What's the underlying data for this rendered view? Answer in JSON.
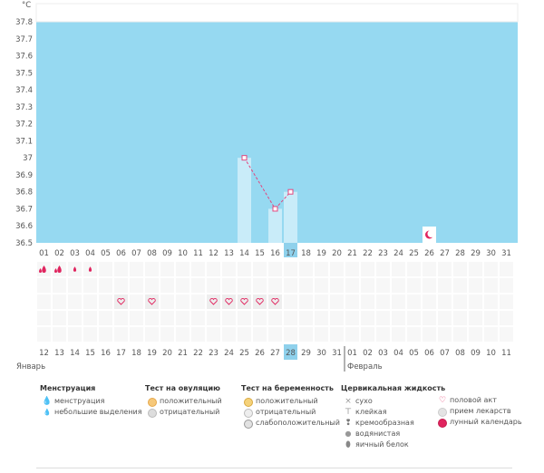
{
  "chart_data": {
    "type": "bar",
    "unit_label": "°C",
    "ylim": [
      36.5,
      37.8
    ],
    "yticks": [
      "36.5",
      "36.6",
      "36.7",
      "36.8",
      "36.9",
      "37",
      "37.1",
      "37.2",
      "37.3",
      "37.4",
      "37.5",
      "37.6",
      "37.7",
      "37.8"
    ],
    "cycle_days": [
      "01",
      "02",
      "03",
      "04",
      "05",
      "06",
      "07",
      "08",
      "09",
      "10",
      "11",
      "12",
      "13",
      "14",
      "15",
      "16",
      "17",
      "18",
      "19",
      "20",
      "21",
      "22",
      "23",
      "24",
      "25",
      "26",
      "27",
      "28",
      "29",
      "30",
      "31"
    ],
    "highlight_day": "17",
    "temperatures": [
      {
        "day": "14",
        "value": 37.0
      },
      {
        "day": "16",
        "value": 36.7
      },
      {
        "day": "17",
        "value": 36.8
      }
    ],
    "lunar_day": "26",
    "menstruation_days": [
      1,
      2,
      3,
      4
    ],
    "menstruation_heavy_days": [
      1,
      2
    ],
    "intercourse_days": [
      6,
      8,
      12,
      13,
      14,
      15,
      16
    ],
    "dates": [
      {
        "text": "12",
        "red": true
      },
      {
        "text": "13",
        "red": true
      },
      {
        "text": "14",
        "red": false
      },
      {
        "text": "15",
        "red": false
      },
      {
        "text": "16",
        "red": false
      },
      {
        "text": "17",
        "red": false
      },
      {
        "text": "18",
        "red": false
      },
      {
        "text": "19",
        "red": true
      },
      {
        "text": "20",
        "red": true
      },
      {
        "text": "21",
        "red": false
      },
      {
        "text": "22",
        "red": false
      },
      {
        "text": "23",
        "red": false
      },
      {
        "text": "24",
        "red": false
      },
      {
        "text": "25",
        "red": false
      },
      {
        "text": "26",
        "red": true
      },
      {
        "text": "27",
        "red": true
      },
      {
        "text": "28",
        "red": false
      },
      {
        "text": "29",
        "red": false
      },
      {
        "text": "30",
        "red": false
      },
      {
        "text": "31",
        "red": false
      },
      {
        "text": "01",
        "red": false
      },
      {
        "text": "02",
        "red": true
      },
      {
        "text": "03",
        "red": true
      },
      {
        "text": "04",
        "red": false
      },
      {
        "text": "05",
        "red": false
      },
      {
        "text": "06",
        "red": false
      },
      {
        "text": "07",
        "red": false
      },
      {
        "text": "08",
        "red": false
      },
      {
        "text": "09",
        "red": true
      },
      {
        "text": "10",
        "red": true
      },
      {
        "text": "11",
        "red": false
      }
    ],
    "month_left": "Январь",
    "month_right": "Февраль",
    "month_split_index": 20,
    "colors": {
      "fill": "#96d9f1",
      "bar": "#c9ecf9",
      "highlight": "#8fd1ec",
      "line": "#e2477e",
      "red": "#e0245e"
    }
  },
  "legend": {
    "menstruation": {
      "title": "Менструация",
      "items": [
        "менструация",
        "небольшие выделения"
      ]
    },
    "ovulation": {
      "title": "Тест на овуляцию",
      "items": [
        "положительный",
        "отрицательный"
      ]
    },
    "pregnancy": {
      "title": "Тест на беременность",
      "items": [
        "положительный",
        "отрицательный",
        "слабоположительный"
      ]
    },
    "cervical": {
      "title": "Цервикальная жидкость",
      "items": [
        "сухо",
        "клейкая",
        "кремообразная",
        "водянистая",
        "яичный белок"
      ]
    },
    "other": {
      "items": [
        "половой акт",
        "прием лекарств",
        "лунный календарь"
      ]
    }
  }
}
